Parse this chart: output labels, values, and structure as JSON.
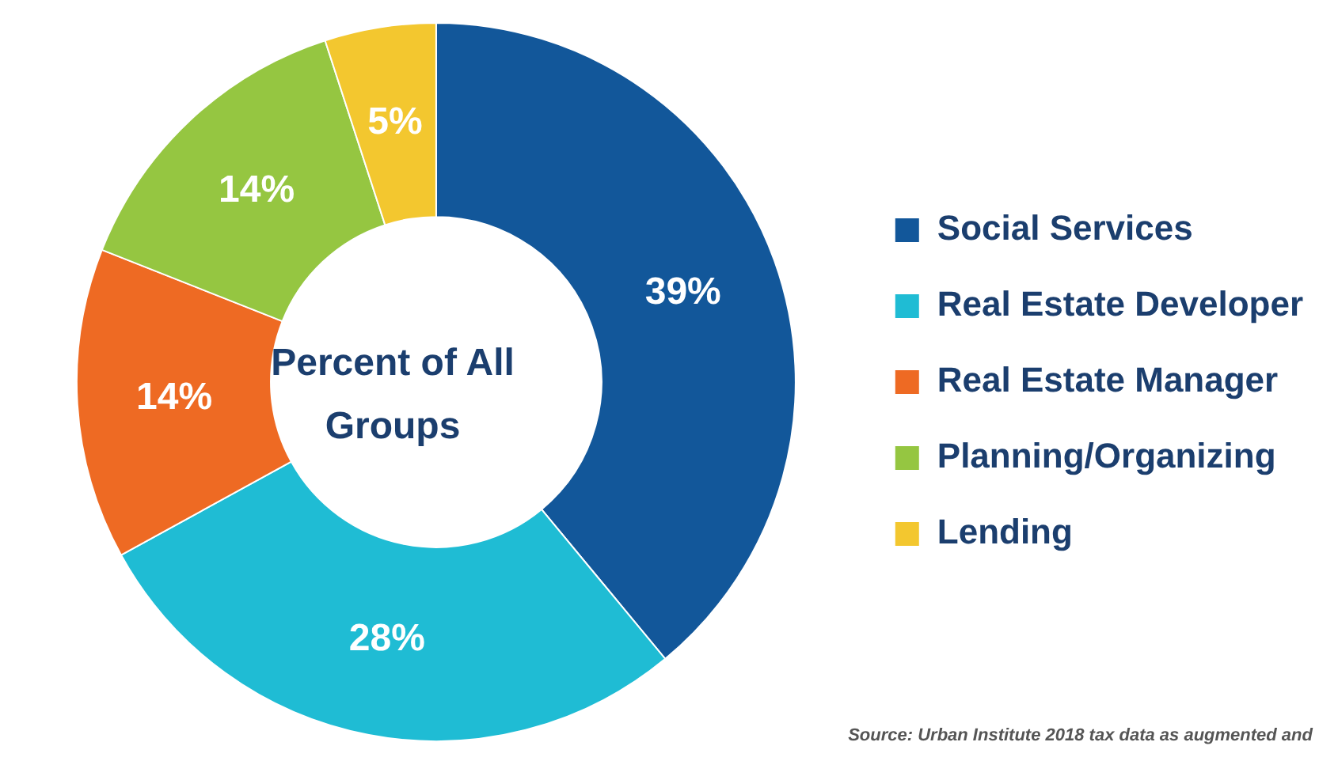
{
  "chart_data": {
    "type": "donut",
    "title": "Percent of All Groups",
    "categories": [
      "Social Services",
      "Real Estate Developer",
      "Real Estate Manager",
      "Planning/Organizing",
      "Lending"
    ],
    "values": [
      39,
      28,
      14,
      14,
      5
    ],
    "colors": [
      "#12579a",
      "#1fbcd4",
      "#ee6a23",
      "#95c641",
      "#f3c72f"
    ],
    "value_labels": [
      "39%",
      "28%",
      "14%",
      "14%",
      "5%"
    ],
    "legend": "right",
    "annotations": [
      "Source: Urban Institute 2018 tax data as augmented and"
    ]
  }
}
